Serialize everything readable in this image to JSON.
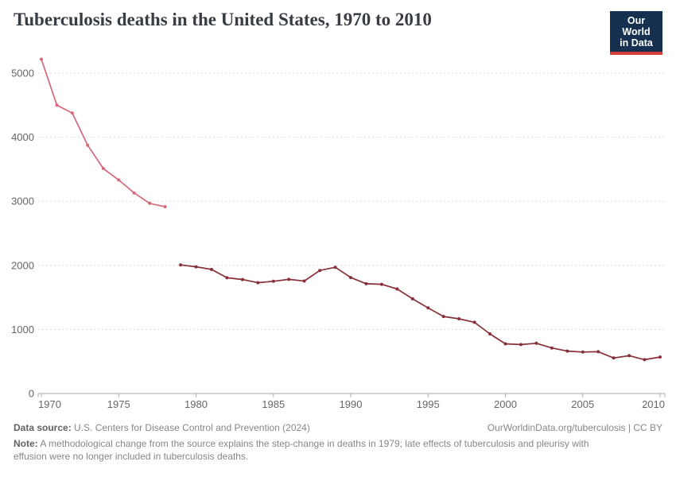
{
  "header": {
    "title": "Tuberculosis deaths in the United States, 1970 to 2010",
    "logo": {
      "line1": "Our World",
      "line2": "in Data"
    }
  },
  "footer": {
    "datasource_label": "Data source:",
    "datasource_text": " U.S. Centers for Disease Control and Prevention (2024)",
    "link_text": "OurWorldinData.org/tuberculosis | CC BY",
    "note_label": "Note:",
    "note_text": " A methodological change from the source explains the step-change in deaths in 1979; late effects of tuberculosis and pleurisy with effusion were no longer included in tuberculosis deaths."
  },
  "colors": {
    "series_pre1979": "#d4697a",
    "series_post1979": "#883039",
    "gridline": "#dddddd",
    "axis": "#a8a8a8",
    "tick_label": "#666666",
    "title_text": "#383d44",
    "logo_navy": "#16304f",
    "logo_red": "#d13d38"
  },
  "chart_data": {
    "type": "line",
    "title": "Tuberculosis deaths in the United States, 1970 to 2010",
    "xlabel": "",
    "ylabel": "",
    "xlim": [
      1970,
      2010
    ],
    "ylim": [
      0,
      5000
    ],
    "xticks": [
      1970,
      1975,
      1980,
      1985,
      1990,
      1995,
      2000,
      2005,
      2010
    ],
    "yticks": [
      0,
      1000,
      2000,
      3000,
      4000,
      5000
    ],
    "grid": "horizontal-dashed",
    "legend": "none",
    "annotation": "step-change in 1979 due to methodological change",
    "series": [
      {
        "name": "United States (1970-1978, pre-methodology change)",
        "color_key": "series_pre1979",
        "points": [
          [
            1970,
            5217
          ],
          [
            1971,
            4501
          ],
          [
            1972,
            4376
          ],
          [
            1973,
            3875
          ],
          [
            1974,
            3513
          ],
          [
            1975,
            3333
          ],
          [
            1976,
            3130
          ],
          [
            1977,
            2968
          ],
          [
            1978,
            2914
          ]
        ]
      },
      {
        "name": "United States (1979-2010)",
        "color_key": "series_post1979",
        "points": [
          [
            1979,
            2007
          ],
          [
            1980,
            1978
          ],
          [
            1981,
            1937
          ],
          [
            1982,
            1807
          ],
          [
            1983,
            1779
          ],
          [
            1984,
            1729
          ],
          [
            1985,
            1752
          ],
          [
            1986,
            1782
          ],
          [
            1987,
            1755
          ],
          [
            1988,
            1921
          ],
          [
            1989,
            1970
          ],
          [
            1990,
            1810
          ],
          [
            1991,
            1713
          ],
          [
            1992,
            1705
          ],
          [
            1993,
            1631
          ],
          [
            1994,
            1478
          ],
          [
            1995,
            1336
          ],
          [
            1996,
            1202
          ],
          [
            1997,
            1166
          ],
          [
            1998,
            1112
          ],
          [
            1999,
            930
          ],
          [
            2000,
            776
          ],
          [
            2001,
            764
          ],
          [
            2002,
            784
          ],
          [
            2003,
            711
          ],
          [
            2004,
            662
          ],
          [
            2005,
            648
          ],
          [
            2006,
            652
          ],
          [
            2007,
            554
          ],
          [
            2008,
            590
          ],
          [
            2009,
            529
          ],
          [
            2010,
            569
          ]
        ]
      }
    ]
  }
}
